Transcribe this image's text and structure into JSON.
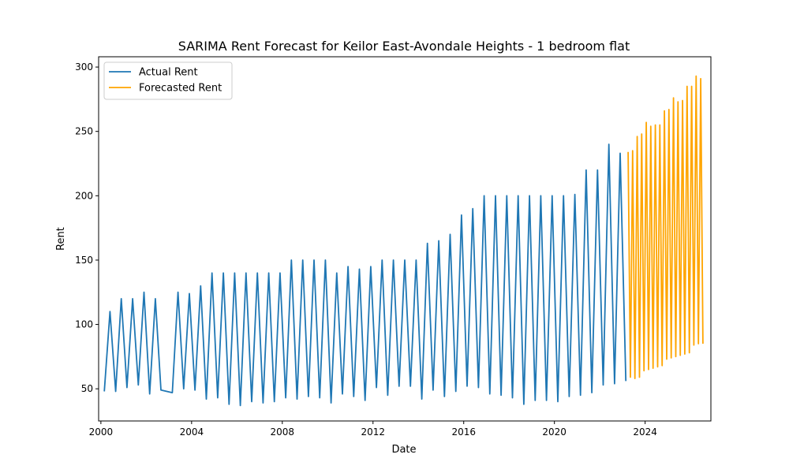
{
  "chart_data": {
    "type": "line",
    "title": "SARIMA Rent Forecast for Keilor East-Avondale Heights - 1 bedroom flat",
    "xlabel": "Date",
    "ylabel": "Rent",
    "xlim": [
      1999.9,
      2026.9
    ],
    "ylim": [
      25,
      308
    ],
    "x_ticks": [
      2000,
      2004,
      2008,
      2012,
      2016,
      2020,
      2024
    ],
    "x_tick_labels": [
      "2000",
      "2004",
      "2008",
      "2012",
      "2016",
      "2020",
      "2024"
    ],
    "y_ticks": [
      50,
      100,
      150,
      200,
      250,
      300
    ],
    "y_tick_labels": [
      "50",
      "100",
      "150",
      "200",
      "250",
      "300"
    ],
    "grid": false,
    "legend": "top-left",
    "series": [
      {
        "name": "Actual Rent",
        "color": "#1f77b4",
        "points": [
          [
            2000.15,
            48
          ],
          [
            2000.4,
            110
          ],
          [
            2000.65,
            48
          ],
          [
            2000.9,
            120
          ],
          [
            2001.15,
            51
          ],
          [
            2001.4,
            120
          ],
          [
            2001.65,
            53
          ],
          [
            2001.9,
            125
          ],
          [
            2002.15,
            46
          ],
          [
            2002.4,
            120
          ],
          [
            2002.65,
            49
          ],
          [
            2003.15,
            47
          ],
          [
            2003.4,
            125
          ],
          [
            2003.65,
            50
          ],
          [
            2003.9,
            124
          ],
          [
            2004.15,
            49
          ],
          [
            2004.4,
            130
          ],
          [
            2004.65,
            42
          ],
          [
            2004.9,
            140
          ],
          [
            2005.15,
            43
          ],
          [
            2005.4,
            140
          ],
          [
            2005.65,
            38
          ],
          [
            2005.9,
            140
          ],
          [
            2006.15,
            37
          ],
          [
            2006.4,
            140
          ],
          [
            2006.65,
            40
          ],
          [
            2006.9,
            140
          ],
          [
            2007.15,
            39
          ],
          [
            2007.4,
            140
          ],
          [
            2007.65,
            40
          ],
          [
            2007.9,
            140
          ],
          [
            2008.15,
            43
          ],
          [
            2008.4,
            150
          ],
          [
            2008.65,
            42
          ],
          [
            2008.9,
            150
          ],
          [
            2009.15,
            44
          ],
          [
            2009.4,
            150
          ],
          [
            2009.65,
            43
          ],
          [
            2009.9,
            150
          ],
          [
            2010.15,
            39
          ],
          [
            2010.4,
            140
          ],
          [
            2010.65,
            46
          ],
          [
            2010.9,
            145
          ],
          [
            2011.15,
            44
          ],
          [
            2011.4,
            143
          ],
          [
            2011.65,
            41
          ],
          [
            2011.9,
            145
          ],
          [
            2012.15,
            51
          ],
          [
            2012.4,
            150
          ],
          [
            2012.65,
            45
          ],
          [
            2012.9,
            150
          ],
          [
            2013.15,
            52
          ],
          [
            2013.4,
            150
          ],
          [
            2013.65,
            52
          ],
          [
            2013.9,
            150
          ],
          [
            2014.15,
            42
          ],
          [
            2014.4,
            163
          ],
          [
            2014.65,
            49
          ],
          [
            2014.9,
            165
          ],
          [
            2015.15,
            44
          ],
          [
            2015.4,
            170
          ],
          [
            2015.65,
            48
          ],
          [
            2015.9,
            185
          ],
          [
            2016.15,
            52
          ],
          [
            2016.4,
            190
          ],
          [
            2016.65,
            51
          ],
          [
            2016.9,
            200
          ],
          [
            2017.15,
            46
          ],
          [
            2017.4,
            200
          ],
          [
            2017.65,
            45
          ],
          [
            2017.9,
            200
          ],
          [
            2018.15,
            43
          ],
          [
            2018.4,
            200
          ],
          [
            2018.65,
            38
          ],
          [
            2018.9,
            200
          ],
          [
            2019.15,
            41
          ],
          [
            2019.4,
            200
          ],
          [
            2019.65,
            41
          ],
          [
            2019.9,
            200
          ],
          [
            2020.15,
            40
          ],
          [
            2020.4,
            200
          ],
          [
            2020.65,
            44
          ],
          [
            2020.9,
            201
          ],
          [
            2021.15,
            45
          ],
          [
            2021.4,
            220
          ],
          [
            2021.65,
            47
          ],
          [
            2021.9,
            220
          ],
          [
            2022.15,
            53
          ],
          [
            2022.4,
            240
          ],
          [
            2022.65,
            54
          ],
          [
            2022.9,
            233
          ],
          [
            2023.15,
            56
          ]
        ]
      },
      {
        "name": "Forecasted Rent",
        "color": "#ffa500",
        "points": [
          [
            2023.25,
            234
          ],
          [
            2023.35,
            59
          ],
          [
            2023.45,
            235
          ],
          [
            2023.55,
            58
          ],
          [
            2023.65,
            246
          ],
          [
            2023.75,
            59
          ],
          [
            2023.85,
            248
          ],
          [
            2023.95,
            64
          ],
          [
            2024.05,
            257
          ],
          [
            2024.15,
            65
          ],
          [
            2024.25,
            254
          ],
          [
            2024.35,
            66
          ],
          [
            2024.45,
            255
          ],
          [
            2024.55,
            67
          ],
          [
            2024.65,
            255
          ],
          [
            2024.75,
            68
          ],
          [
            2024.85,
            266
          ],
          [
            2024.95,
            73
          ],
          [
            2025.05,
            267
          ],
          [
            2025.15,
            74
          ],
          [
            2025.25,
            276
          ],
          [
            2025.35,
            75
          ],
          [
            2025.45,
            273
          ],
          [
            2025.55,
            76
          ],
          [
            2025.65,
            274
          ],
          [
            2025.75,
            77
          ],
          [
            2025.85,
            285
          ],
          [
            2025.95,
            78
          ],
          [
            2026.05,
            285
          ],
          [
            2026.15,
            84
          ],
          [
            2026.25,
            293
          ],
          [
            2026.35,
            85
          ],
          [
            2026.45,
            291
          ],
          [
            2026.55,
            85
          ]
        ]
      }
    ]
  }
}
